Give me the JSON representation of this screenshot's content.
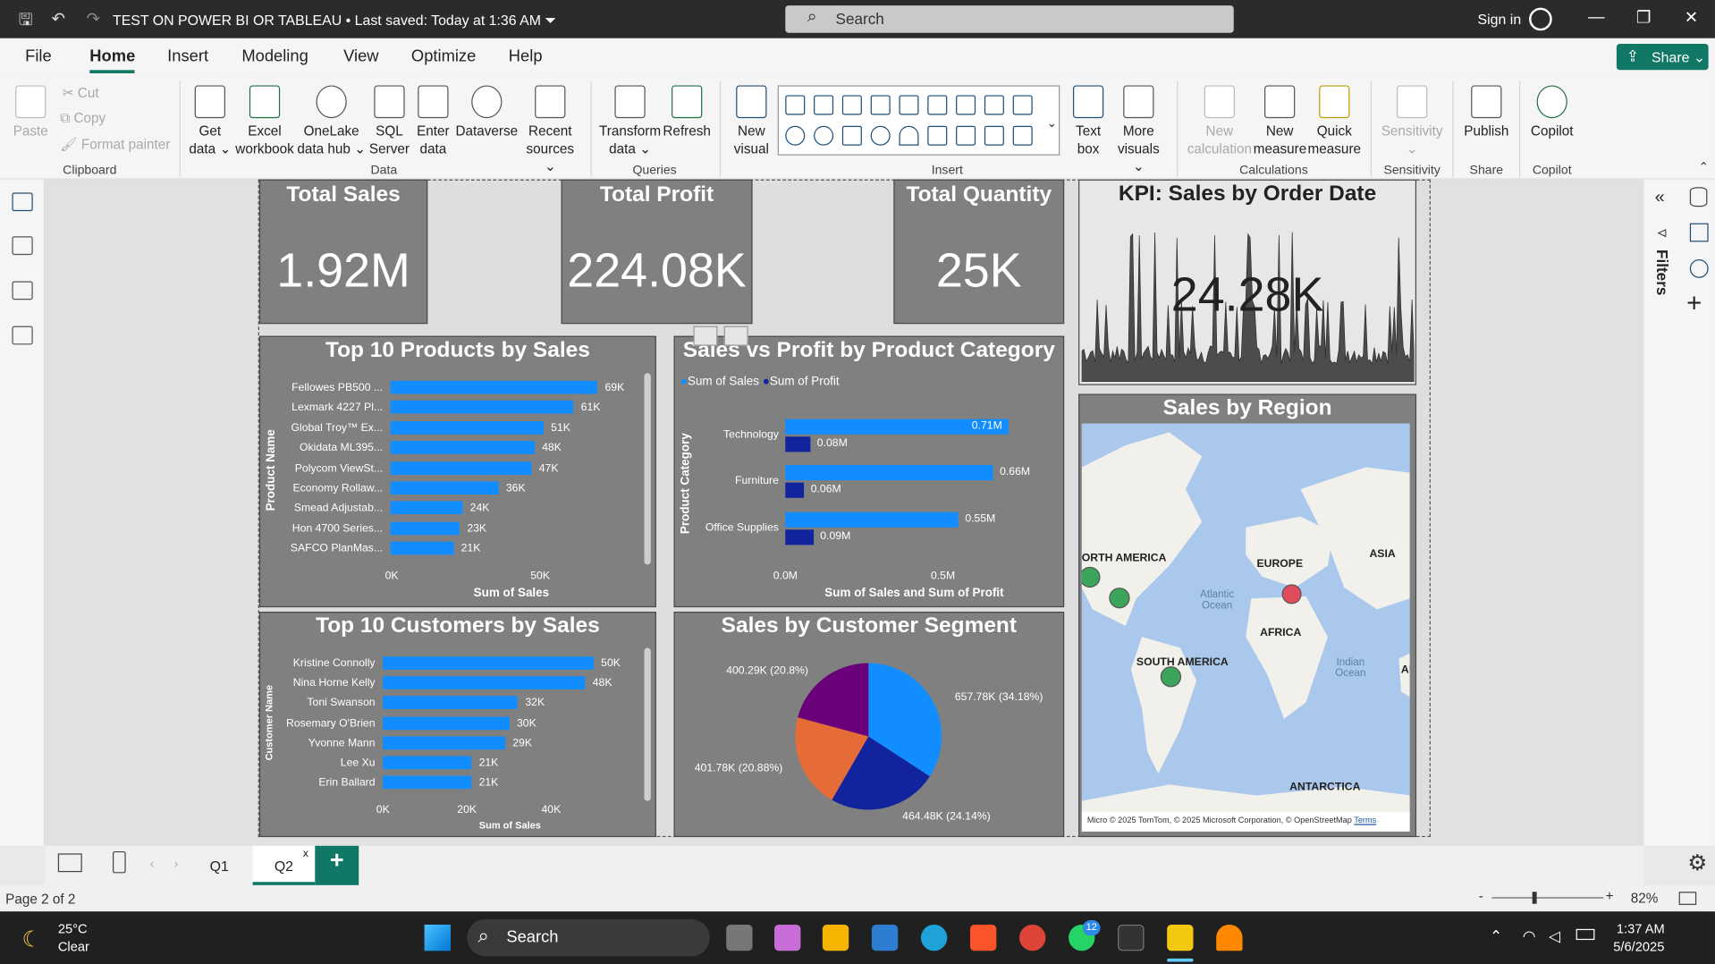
{
  "window": {
    "title": "TEST ON POWER BI OR TABLEAU",
    "saved_status": "• Last saved: Today at 1:36 AM",
    "search_placeholder": "Search",
    "sign_in": "Sign in"
  },
  "menu": [
    "File",
    "Home",
    "Insert",
    "Modeling",
    "View",
    "Optimize",
    "Help"
  ],
  "share_label": "Share",
  "ribbon": {
    "paste": "Paste",
    "cut": "Cut",
    "copy": "Copy",
    "format_painter": "Format painter",
    "get_data": [
      "Get",
      "data"
    ],
    "excel": [
      "Excel",
      "workbook"
    ],
    "onelake": [
      "OneLake",
      "data hub"
    ],
    "sql": [
      "SQL",
      "Server"
    ],
    "enter": [
      "Enter",
      "data"
    ],
    "dataverse": "Dataverse",
    "recent": [
      "Recent",
      "sources"
    ],
    "transform": [
      "Transform",
      "data"
    ],
    "refresh": "Refresh",
    "new_visual": [
      "New",
      "visual"
    ],
    "text_box": [
      "Text",
      "box"
    ],
    "more_visuals": [
      "More",
      "visuals"
    ],
    "new_calc": [
      "New",
      "calculation"
    ],
    "new_measure": [
      "New",
      "measure"
    ],
    "quick_measure": [
      "Quick",
      "measure"
    ],
    "sensitivity": "Sensitivity",
    "publish": "Publish",
    "copilot": "Copilot",
    "groups": {
      "clipboard": "Clipboard",
      "data": "Data",
      "queries": "Queries",
      "insert": "Insert",
      "calculations": "Calculations",
      "sensitivity": "Sensitivity",
      "share": "Share",
      "copilot": "Copilot"
    }
  },
  "filters_label": "Filters",
  "cards": [
    {
      "title": "Total Sales",
      "value": "1.92M"
    },
    {
      "title": "Total Profit",
      "value": "224.08K"
    },
    {
      "title": "Total Quantity",
      "value": "25K"
    }
  ],
  "kpi": {
    "title": "KPI: Sales by Order Date",
    "value": "24.28K"
  },
  "chart_data": [
    {
      "type": "bar",
      "title": "Top 10 Products by Sales",
      "xlabel": "Sum of Sales",
      "ylabel": "Product Name",
      "categories": [
        "Fellowes PB500 ...",
        "Lexmark 4227 Pl...",
        "Global Troy™ Ex...",
        "Okidata ML395...",
        "Polycom ViewSt...",
        "Economy Rollaw...",
        "Smead Adjustab...",
        "Hon 4700 Series...",
        "SAFCO PlanMas..."
      ],
      "values": [
        69000,
        61000,
        51000,
        48000,
        47000,
        36000,
        24000,
        23000,
        21000
      ],
      "value_labels": [
        "69K",
        "61K",
        "51K",
        "48K",
        "47K",
        "36K",
        "24K",
        "23K",
        "21K"
      ],
      "xticks": [
        "0K",
        "50K"
      ],
      "xlim": [
        0,
        75000
      ]
    },
    {
      "type": "bar",
      "title": "Sales vs Profit by Product Category",
      "xlabel": "Sum of Sales and Sum of Profit",
      "ylabel": "Product Category",
      "categories": [
        "Technology",
        "Furniture",
        "Office Supplies"
      ],
      "series": [
        {
          "name": "Sum of Sales",
          "values": [
            710000,
            660000,
            550000
          ],
          "labels": [
            "0.71M",
            "0.66M",
            "0.55M"
          ],
          "color": "#118dff"
        },
        {
          "name": "Sum of Profit",
          "values": [
            80000,
            60000,
            90000
          ],
          "labels": [
            "0.08M",
            "0.06M",
            "0.09M"
          ],
          "color": "#12239e"
        }
      ],
      "xticks": [
        "0.0M",
        "0.5M"
      ],
      "xlim": [
        0,
        750000
      ]
    },
    {
      "type": "bar",
      "title": "Top 10 Customers by Sales",
      "xlabel": "Sum of Sales",
      "ylabel": "Customer Name",
      "categories": [
        "Kristine Connolly",
        "Nina Horne Kelly",
        "Toni Swanson",
        "Rosemary O'Brien",
        "Yvonne Mann",
        "Lee Xu",
        "Erin Ballard"
      ],
      "values": [
        50000,
        48000,
        32000,
        30000,
        29000,
        21000,
        21000
      ],
      "value_labels": [
        "50K",
        "48K",
        "32K",
        "30K",
        "29K",
        "21K",
        "21K"
      ],
      "xticks": [
        "0K",
        "20K",
        "40K"
      ],
      "xlim": [
        0,
        52000
      ]
    },
    {
      "type": "pie",
      "title": "Sales by Customer Segment",
      "slices": [
        {
          "label": "657.78K (34.18%)",
          "value": 657780,
          "color": "#118dff"
        },
        {
          "label": "464.48K (24.14%)",
          "value": 464480,
          "color": "#12239e"
        },
        {
          "label": "401.78K (20.88%)",
          "value": 401780,
          "color": "#e66c37"
        },
        {
          "label": "400.29K (20.8%)",
          "value": 400290,
          "color": "#6b007b"
        }
      ]
    }
  ],
  "map": {
    "title": "Sales by Region",
    "labels": [
      "ORTH AMERICA",
      "EUROPE",
      "ASIA",
      "AFRICA",
      "SOUTH AMERICA",
      "ANTARCTICA",
      "AU"
    ],
    "oceans": [
      "Atlantic Ocean",
      "Indian Ocean"
    ],
    "attribution": "© 2025 TomTom, © 2025 Microsoft Corporation, © OpenStreetMap",
    "terms": "Terms",
    "brand": "Micro"
  },
  "pages": [
    "Q1",
    "Q2"
  ],
  "status": {
    "page": "Page 2 of 2",
    "zoom": "82%"
  },
  "taskbar": {
    "temp": "25°C",
    "weather": "Clear",
    "search": "Search",
    "time": "1:37 AM",
    "date": "5/6/2025",
    "badge": "12"
  }
}
